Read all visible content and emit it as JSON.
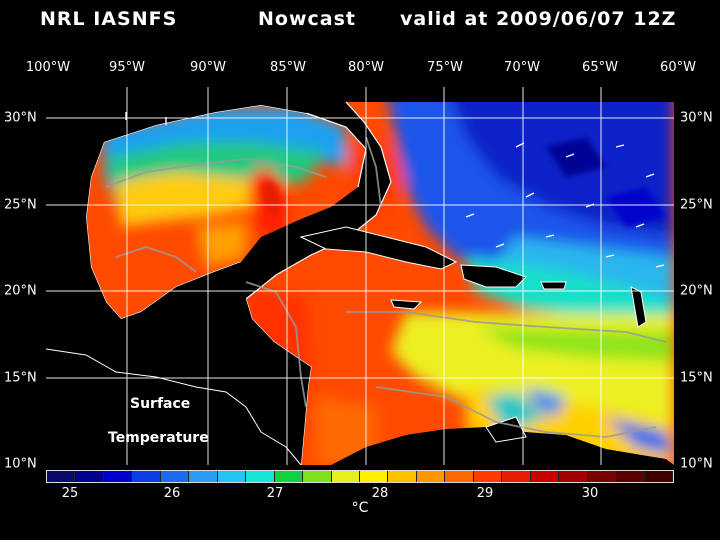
{
  "title": {
    "agency": "NRL IASNFS",
    "product": "Nowcast",
    "valid": "valid at 2009/06/07 12Z"
  },
  "map": {
    "variable_line1": "Surface",
    "variable_line2": "Temperature",
    "lon_labels": [
      "100°W",
      "95°W",
      "90°W",
      "85°W",
      "80°W",
      "75°W",
      "70°W",
      "65°W",
      "60°W"
    ],
    "lat_labels": [
      "30°N",
      "25°N",
      "20°N",
      "15°N",
      "10°N"
    ],
    "lon_range": [
      -100,
      -60
    ],
    "lat_range": [
      10,
      31
    ],
    "grid": true
  },
  "colorbar": {
    "tick_labels": [
      "25",
      "26",
      "27",
      "28",
      "29",
      "30"
    ],
    "unit": "°C",
    "colors": [
      "#0a0a6a",
      "#00008f",
      "#0000cc",
      "#0a3ee6",
      "#1a6cf0",
      "#2a9cf5",
      "#23c4f0",
      "#16e6d6",
      "#10d23c",
      "#7fe01c",
      "#e6f01a",
      "#fff000",
      "#ffc000",
      "#ff9600",
      "#ff6a00",
      "#ff3c00",
      "#e61e00",
      "#c80000",
      "#a00000",
      "#7a0000",
      "#5a0000",
      "#3c0000"
    ]
  }
}
